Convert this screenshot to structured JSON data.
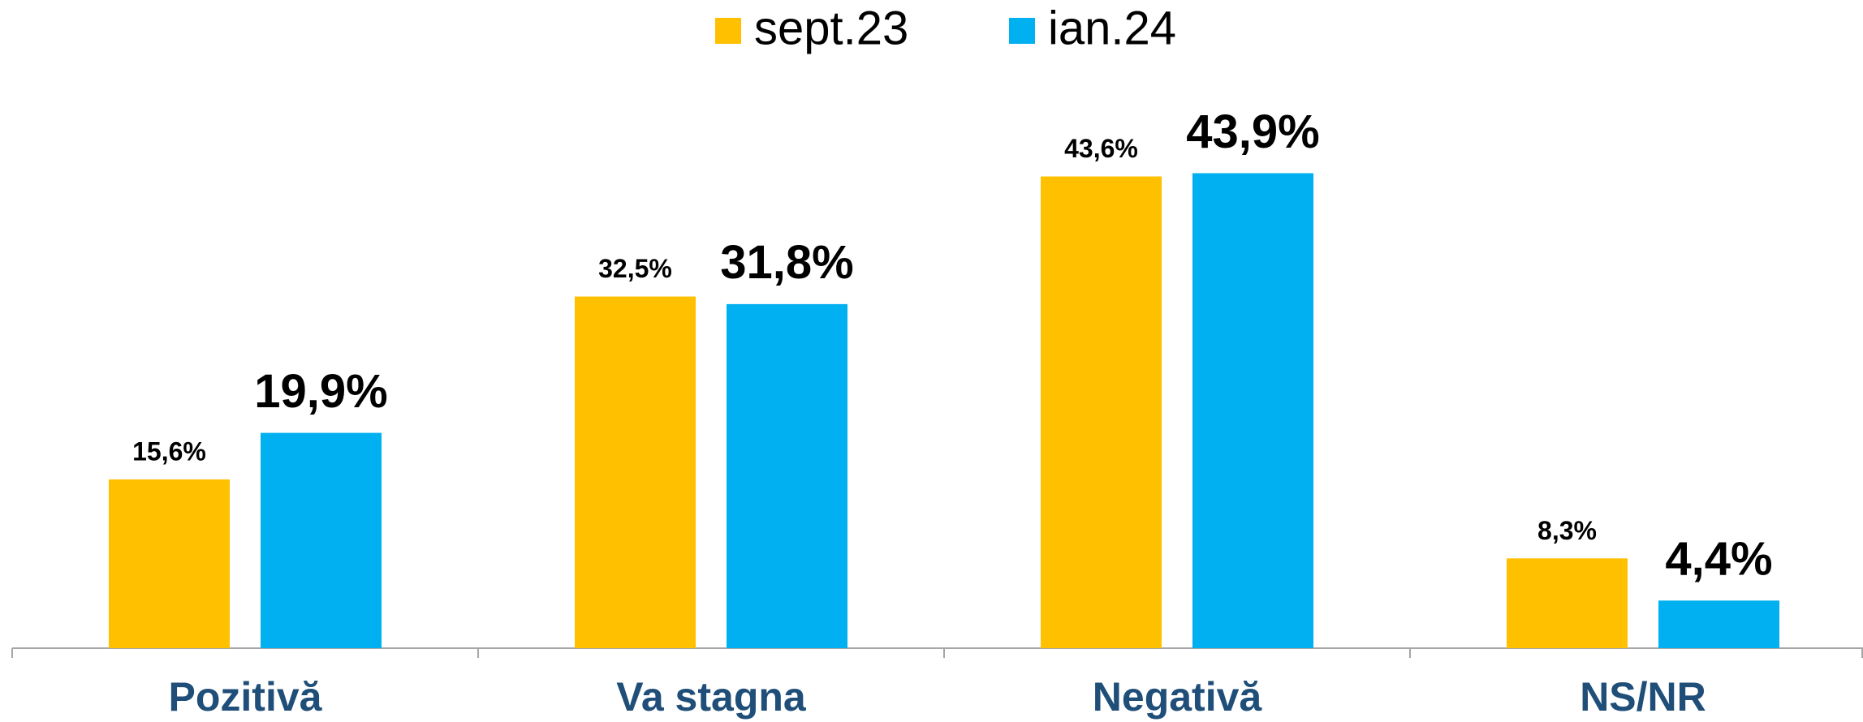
{
  "chart_data": {
    "type": "bar",
    "categories": [
      "Pozitivă",
      "Va stagna",
      "Negativă",
      "NS/NR"
    ],
    "series": [
      {
        "name": "sept.23",
        "color": "#ffc000",
        "values": [
          15.6,
          32.5,
          43.6,
          8.3
        ],
        "value_labels": [
          "15,6%",
          "32,5%",
          "43,6%",
          "8,3%"
        ]
      },
      {
        "name": "ian.24",
        "color": "#00b0f0",
        "values": [
          19.9,
          31.8,
          43.9,
          4.4
        ],
        "value_labels": [
          "19,9%",
          "31,8%",
          "43,9%",
          "4,4%"
        ]
      }
    ],
    "legend": "top"
  }
}
